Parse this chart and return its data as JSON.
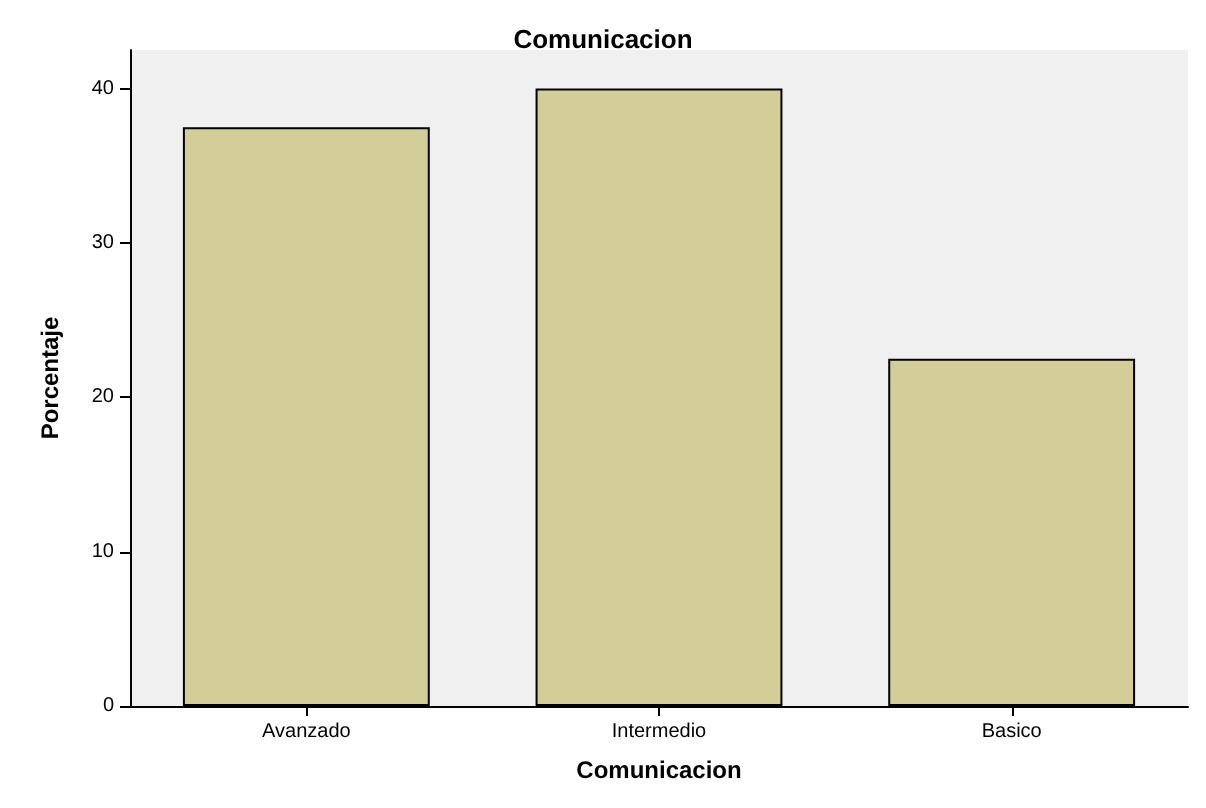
{
  "chart_data": {
    "type": "bar",
    "title": "Comunicacion",
    "xlabel": "Comunicacion",
    "ylabel": "Porcentaje",
    "categories": [
      "Avanzado",
      "Intermedio",
      "Basico"
    ],
    "values": [
      37.5,
      40,
      22.5
    ],
    "color": "#d3ce97",
    "ylim": [
      0,
      42.5
    ],
    "yticks": [
      0,
      10,
      20,
      30,
      40
    ],
    "grid": false
  }
}
